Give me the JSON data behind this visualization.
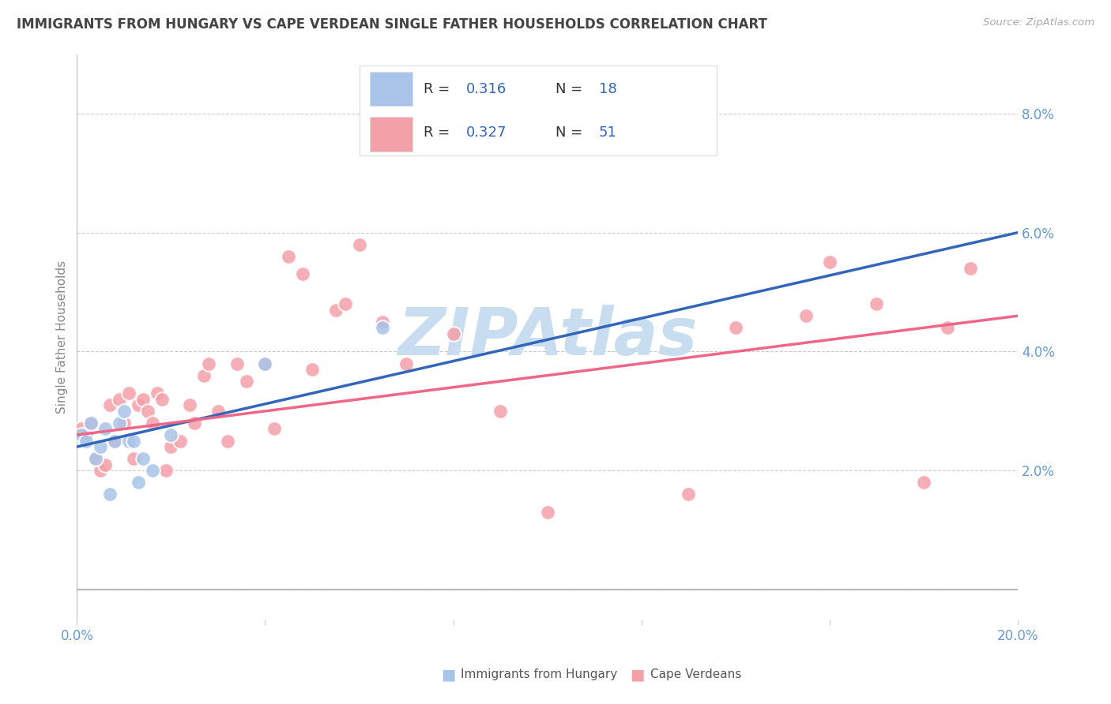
{
  "title": "IMMIGRANTS FROM HUNGARY VS CAPE VERDEAN SINGLE FATHER HOUSEHOLDS CORRELATION CHART",
  "source": "Source: ZipAtlas.com",
  "ylabel": "Single Father Households",
  "x_label_hungary": "Immigrants from Hungary",
  "x_label_capeverdean": "Cape Verdeans",
  "xlim": [
    0.0,
    0.2
  ],
  "ylim": [
    -0.005,
    0.09
  ],
  "yticks_right": [
    0.0,
    0.02,
    0.04,
    0.06,
    0.08
  ],
  "ytick_labels_right": [
    "",
    "2.0%",
    "4.0%",
    "6.0%",
    "8.0%"
  ],
  "legend_r_hungary": "R = 0.316",
  "legend_n_hungary": "N = 18",
  "legend_r_cape": "R = 0.327",
  "legend_n_cape": "N = 51",
  "color_hungary": "#a8c4e8",
  "color_cape": "#f4a0a8",
  "color_hungary_line": "#3366bb",
  "color_cape_line": "#ee6688",
  "color_axis_text": "#6699cc",
  "color_watermark": "#c8ddf0",
  "color_grid": "#cccccc",
  "color_legend_text": "#3366bb",
  "hungary_x": [
    0.001,
    0.002,
    0.003,
    0.004,
    0.005,
    0.006,
    0.007,
    0.008,
    0.009,
    0.01,
    0.011,
    0.012,
    0.013,
    0.014,
    0.016,
    0.02,
    0.04,
    0.065
  ],
  "hungary_y": [
    0.026,
    0.025,
    0.028,
    0.022,
    0.024,
    0.027,
    0.016,
    0.025,
    0.028,
    0.03,
    0.025,
    0.025,
    0.018,
    0.022,
    0.02,
    0.026,
    0.038,
    0.044
  ],
  "cape_x": [
    0.001,
    0.002,
    0.003,
    0.004,
    0.005,
    0.006,
    0.007,
    0.008,
    0.009,
    0.01,
    0.011,
    0.012,
    0.013,
    0.014,
    0.015,
    0.016,
    0.017,
    0.018,
    0.019,
    0.02,
    0.022,
    0.024,
    0.025,
    0.027,
    0.028,
    0.03,
    0.032,
    0.034,
    0.036,
    0.04,
    0.042,
    0.045,
    0.048,
    0.05,
    0.055,
    0.057,
    0.06,
    0.065,
    0.07,
    0.08,
    0.09,
    0.1,
    0.12,
    0.13,
    0.14,
    0.155,
    0.16,
    0.17,
    0.18,
    0.185,
    0.19
  ],
  "cape_y": [
    0.027,
    0.026,
    0.028,
    0.022,
    0.02,
    0.021,
    0.031,
    0.025,
    0.032,
    0.028,
    0.033,
    0.022,
    0.031,
    0.032,
    0.03,
    0.028,
    0.033,
    0.032,
    0.02,
    0.024,
    0.025,
    0.031,
    0.028,
    0.036,
    0.038,
    0.03,
    0.025,
    0.038,
    0.035,
    0.038,
    0.027,
    0.056,
    0.053,
    0.037,
    0.047,
    0.048,
    0.058,
    0.045,
    0.038,
    0.043,
    0.03,
    0.013,
    0.075,
    0.016,
    0.044,
    0.046,
    0.055,
    0.048,
    0.018,
    0.044,
    0.054
  ],
  "hungary_trend_x": [
    0.0,
    0.2
  ],
  "hungary_trend_y": [
    0.024,
    0.06
  ],
  "cape_trend_x": [
    0.0,
    0.2
  ],
  "cape_trend_y": [
    0.026,
    0.046
  ]
}
